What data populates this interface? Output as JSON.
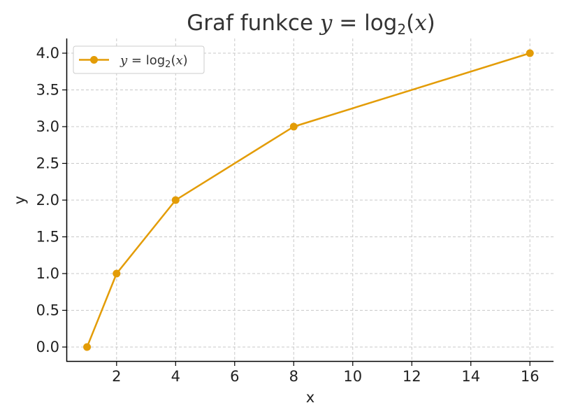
{
  "chart_data": {
    "type": "line",
    "title": {
      "prefix": "Graf funkce ",
      "y": "y",
      "eq": " = ",
      "log": "log",
      "base": "2",
      "lp": "(",
      "x": "x",
      "rp": ")"
    },
    "xlabel": "x",
    "ylabel": "y",
    "xlim": [
      0.3,
      16.8
    ],
    "ylim": [
      -0.2,
      4.2
    ],
    "x_ticks": [
      2,
      4,
      6,
      8,
      10,
      12,
      14,
      16
    ],
    "x_tick_labels": [
      "2",
      "4",
      "6",
      "8",
      "10",
      "12",
      "14",
      "16"
    ],
    "y_ticks": [
      0,
      0.5,
      1,
      1.5,
      2,
      2.5,
      3,
      3.5,
      4
    ],
    "y_tick_labels": [
      "0.0",
      "0.5",
      "1.0",
      "1.5",
      "2.0",
      "2.5",
      "3.0",
      "3.5",
      "4.0"
    ],
    "grid": true,
    "legend_position": "top-left",
    "series": [
      {
        "name": "y = log2(x)",
        "legend": {
          "y": "y",
          "eq": " = ",
          "log": "log",
          "base": "2",
          "lp": "(",
          "x": "x",
          "rp": ")"
        },
        "color": "#E39C06",
        "marker": "circle",
        "x": [
          1,
          2,
          4,
          8,
          16
        ],
        "y": [
          0,
          1,
          2,
          3,
          4
        ]
      }
    ]
  }
}
